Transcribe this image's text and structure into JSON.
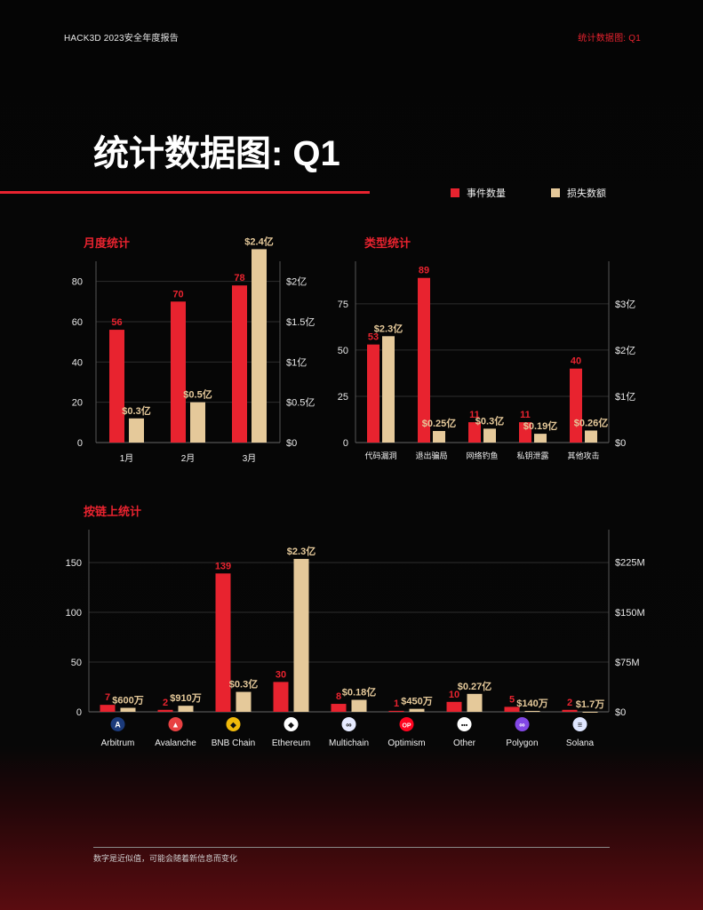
{
  "header": {
    "left": "HACK3D 2023安全年度报告",
    "right": "统计数据图: Q1"
  },
  "page_title": "统计数据图: Q1",
  "legend": {
    "count_label": "事件数量",
    "loss_label": "损失数额"
  },
  "colors": {
    "count": "#e8232f",
    "loss": "#e5c99a",
    "accent": "#e8232f"
  },
  "footer_note": "数字是近似值，可能会随着新信息而变化",
  "chart_data": [
    {
      "type": "bar",
      "title": "月度统计",
      "categories": [
        "1月",
        "2月",
        "3月"
      ],
      "series": [
        {
          "name": "事件数量",
          "values": [
            56,
            70,
            78
          ],
          "labels": [
            "56",
            "70",
            "78"
          ],
          "axis": "left"
        },
        {
          "name": "损失数额",
          "values": [
            0.3,
            0.5,
            2.4
          ],
          "labels": [
            "$0.3亿",
            "$0.5亿",
            "$2.4亿"
          ],
          "axis": "right"
        }
      ],
      "left_axis": {
        "ylim": [
          0,
          90
        ],
        "ticks": [
          0,
          20,
          40,
          60,
          80
        ],
        "tick_labels": [
          "0",
          "20",
          "40",
          "60",
          "80"
        ]
      },
      "right_axis": {
        "ylim": [
          0,
          2.25
        ],
        "ticks": [
          0,
          0.5,
          1,
          1.5,
          2
        ],
        "tick_labels": [
          "$0",
          "$0.5亿",
          "$1亿",
          "$1.5亿",
          "$2亿"
        ]
      },
      "grid": true
    },
    {
      "type": "bar",
      "title": "类型统计",
      "categories": [
        "代码漏洞",
        "退出骗局",
        "网络钓鱼",
        "私钥泄露",
        "其他攻击"
      ],
      "series": [
        {
          "name": "事件数量",
          "values": [
            53,
            89,
            11,
            11,
            40
          ],
          "labels": [
            "53",
            "89",
            "11",
            "11",
            "40"
          ],
          "axis": "left"
        },
        {
          "name": "损失数额",
          "values": [
            2.3,
            0.25,
            0.3,
            0.19,
            0.26
          ],
          "labels": [
            "$2.3亿",
            "$0.25亿",
            "$0.3亿",
            "$0.19亿",
            "$0.26亿"
          ],
          "axis": "right"
        }
      ],
      "left_axis": {
        "ylim": [
          0,
          98
        ],
        "ticks": [
          0,
          25,
          50,
          75
        ],
        "tick_labels": [
          "0",
          "25",
          "50",
          "75"
        ]
      },
      "right_axis": {
        "ylim": [
          0,
          3.92
        ],
        "ticks": [
          0,
          1,
          2,
          3
        ],
        "tick_labels": [
          "$0",
          "$1亿",
          "$2亿",
          "$3亿"
        ]
      },
      "grid": true
    },
    {
      "type": "bar",
      "title": "按链上统计",
      "categories": [
        "Arbitrum",
        "Avalanche",
        "BNB Chain",
        "Ethereum",
        "Multichain",
        "Optimism",
        "Other",
        "Polygon",
        "Solana"
      ],
      "series": [
        {
          "name": "事件数量",
          "values": [
            7,
            2,
            139,
            30,
            8,
            1,
            10,
            5,
            2
          ],
          "labels": [
            "7",
            "2",
            "139",
            "30",
            "8",
            "1",
            "10",
            "5",
            "2"
          ],
          "axis": "left"
        },
        {
          "name": "损失数额",
          "values": [
            6,
            9.1,
            30,
            230,
            18,
            4.5,
            27,
            1.4,
            0.017
          ],
          "labels": [
            "$600万",
            "$910万",
            "$0.3亿",
            "$2.3亿",
            "$0.18亿",
            "$450万",
            "$0.27亿",
            "$140万",
            "$1.7万"
          ],
          "axis": "right"
        }
      ],
      "left_axis": {
        "ylim": [
          0,
          183
        ],
        "ticks": [
          0,
          50,
          100,
          150
        ],
        "tick_labels": [
          "0",
          "50",
          "100",
          "150"
        ]
      },
      "right_axis": {
        "ylim": [
          0,
          274
        ],
        "ticks": [
          0,
          75,
          150,
          225
        ],
        "tick_labels": [
          "$0",
          "$75M",
          "$150M",
          "$225M"
        ]
      },
      "grid": true
    }
  ],
  "chain_icons": [
    {
      "name": "arbitrum-icon",
      "color": "#1b3a7a",
      "glyph": "A"
    },
    {
      "name": "avalanche-icon",
      "color": "#e84142",
      "glyph": "▲"
    },
    {
      "name": "bnb-chain-icon",
      "color": "#f0b90b",
      "glyph": "◆"
    },
    {
      "name": "ethereum-icon",
      "color": "#ffffff",
      "glyph": "◆"
    },
    {
      "name": "multichain-icon",
      "color": "#e6ebff",
      "glyph": "∞"
    },
    {
      "name": "optimism-icon",
      "color": "#ff0420",
      "glyph": "OP"
    },
    {
      "name": "other-icon",
      "color": "#ffffff",
      "glyph": "•••"
    },
    {
      "name": "polygon-icon",
      "color": "#8247e5",
      "glyph": "∞"
    },
    {
      "name": "solana-icon",
      "color": "#dfe6ff",
      "glyph": "≡"
    }
  ]
}
